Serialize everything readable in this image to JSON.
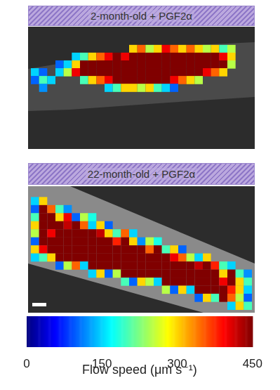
{
  "chart_data": {
    "type": "heatmap",
    "panels": [
      {
        "title": "2-month-old + PGF2α",
        "cells": [
          [
            null,
            null,
            null,
            null,
            null,
            null,
            null,
            null,
            null,
            null,
            null,
            null,
            null,
            null,
            null,
            null,
            null,
            null,
            null,
            null,
            null,
            null,
            null,
            null,
            null,
            null,
            null
          ],
          [
            null,
            null,
            null,
            null,
            null,
            null,
            null,
            null,
            null,
            null,
            null,
            null,
            null,
            null,
            null,
            null,
            null,
            null,
            null,
            null,
            null,
            null,
            null,
            null,
            null,
            null,
            null
          ],
          [
            null,
            null,
            null,
            null,
            null,
            null,
            null,
            null,
            null,
            null,
            null,
            null,
            300,
            350,
            250,
            300,
            400,
            350,
            300,
            350,
            300,
            250,
            300,
            200,
            250,
            null,
            null
          ],
          [
            null,
            null,
            null,
            null,
            null,
            150,
            200,
            300,
            350,
            400,
            450,
            400,
            450,
            450,
            450,
            450,
            450,
            450,
            450,
            450,
            450,
            450,
            450,
            400,
            300,
            null,
            null
          ],
          [
            null,
            null,
            null,
            100,
            150,
            300,
            450,
            450,
            450,
            450,
            450,
            450,
            450,
            450,
            450,
            450,
            450,
            450,
            450,
            450,
            450,
            450,
            450,
            450,
            250,
            null,
            null
          ],
          [
            150,
            100,
            null,
            150,
            250,
            400,
            450,
            450,
            450,
            450,
            450,
            450,
            450,
            450,
            450,
            450,
            450,
            450,
            450,
            450,
            450,
            400,
            350,
            300,
            null,
            null,
            null
          ],
          [
            100,
            200,
            150,
            null,
            null,
            null,
            200,
            300,
            350,
            400,
            450,
            450,
            450,
            450,
            450,
            450,
            450,
            400,
            350,
            300,
            250,
            null,
            null,
            null,
            null,
            null,
            null
          ],
          [
            null,
            120,
            null,
            null,
            null,
            null,
            null,
            null,
            null,
            150,
            200,
            300,
            300,
            250,
            300,
            200,
            150,
            100,
            null,
            null,
            null,
            null,
            null,
            null,
            null,
            null,
            null
          ],
          [
            null,
            null,
            null,
            null,
            null,
            null,
            null,
            null,
            null,
            null,
            null,
            null,
            null,
            null,
            null,
            null,
            null,
            null,
            null,
            null,
            null,
            null,
            null,
            null,
            null,
            null,
            null
          ],
          [
            null,
            null,
            null,
            null,
            null,
            null,
            null,
            null,
            null,
            null,
            null,
            null,
            null,
            null,
            null,
            null,
            null,
            null,
            null,
            null,
            null,
            null,
            null,
            null,
            null,
            null,
            null
          ],
          [
            null,
            null,
            null,
            null,
            null,
            null,
            null,
            null,
            null,
            null,
            null,
            null,
            null,
            null,
            null,
            null,
            null,
            null,
            null,
            null,
            null,
            null,
            null,
            null,
            null,
            null,
            null
          ],
          [
            null,
            null,
            null,
            null,
            null,
            null,
            null,
            null,
            null,
            null,
            null,
            null,
            null,
            null,
            null,
            null,
            null,
            null,
            null,
            null,
            null,
            null,
            null,
            null,
            null,
            null,
            null
          ],
          [
            null,
            null,
            null,
            null,
            null,
            null,
            null,
            null,
            null,
            null,
            null,
            null,
            null,
            null,
            null,
            null,
            null,
            null,
            null,
            null,
            null,
            null,
            null,
            null,
            null,
            null,
            null
          ],
          [
            null,
            null,
            null,
            null,
            null,
            null,
            null,
            null,
            null,
            null,
            null,
            null,
            null,
            null,
            null,
            null,
            null,
            null,
            null,
            null,
            null,
            null,
            null,
            null,
            null,
            null,
            null
          ],
          [
            null,
            null,
            null,
            null,
            null,
            null,
            null,
            null,
            null,
            null,
            null,
            null,
            null,
            null,
            null,
            null,
            null,
            null,
            null,
            null,
            null,
            null,
            null,
            null,
            null,
            null,
            null
          ]
        ]
      },
      {
        "title": "22-month-old + PGF2α",
        "cells": [
          [
            null,
            null,
            null,
            null,
            null,
            null,
            null,
            null,
            null,
            null,
            null,
            null,
            null,
            null,
            null,
            null,
            null,
            null,
            null,
            null,
            null,
            null,
            null,
            null,
            null,
            null,
            null
          ],
          [
            150,
            300,
            null,
            null,
            null,
            null,
            null,
            null,
            null,
            null,
            null,
            null,
            null,
            null,
            null,
            null,
            null,
            null,
            null,
            null,
            null,
            null,
            null,
            null,
            null,
            null,
            null
          ],
          [
            100,
            450,
            350,
            200,
            120,
            null,
            null,
            null,
            null,
            null,
            null,
            null,
            null,
            null,
            null,
            null,
            null,
            null,
            null,
            null,
            null,
            null,
            null,
            null,
            null,
            null,
            null
          ],
          [
            200,
            450,
            450,
            300,
            400,
            100,
            250,
            180,
            null,
            null,
            null,
            null,
            null,
            null,
            null,
            null,
            null,
            null,
            null,
            null,
            null,
            null,
            null,
            null,
            null,
            null,
            null
          ],
          [
            300,
            450,
            450,
            450,
            420,
            450,
            350,
            150,
            300,
            100,
            null,
            null,
            null,
            null,
            null,
            null,
            null,
            null,
            null,
            null,
            null,
            null,
            null,
            null,
            null,
            null,
            null
          ],
          [
            250,
            450,
            400,
            450,
            450,
            450,
            450,
            450,
            420,
            300,
            200,
            350,
            150,
            null,
            null,
            null,
            null,
            null,
            null,
            null,
            null,
            null,
            null,
            null,
            null,
            null,
            null
          ],
          [
            100,
            450,
            450,
            450,
            450,
            450,
            450,
            450,
            450,
            450,
            380,
            450,
            300,
            120,
            250,
            180,
            null,
            null,
            null,
            null,
            null,
            null,
            null,
            null,
            null,
            null,
            null
          ],
          [
            300,
            400,
            450,
            450,
            450,
            450,
            450,
            450,
            450,
            450,
            450,
            450,
            450,
            450,
            350,
            450,
            200,
            300,
            100,
            null,
            null,
            null,
            null,
            null,
            null,
            null,
            null
          ],
          [
            150,
            200,
            300,
            450,
            450,
            450,
            450,
            450,
            450,
            450,
            450,
            450,
            450,
            450,
            450,
            450,
            450,
            400,
            350,
            250,
            150,
            300,
            null,
            null,
            null,
            null,
            null
          ],
          [
            null,
            null,
            null,
            100,
            250,
            350,
            150,
            450,
            450,
            450,
            450,
            450,
            450,
            450,
            450,
            450,
            450,
            450,
            450,
            450,
            420,
            450,
            380,
            200,
            150,
            null,
            null
          ],
          [
            null,
            null,
            null,
            null,
            null,
            null,
            null,
            150,
            300,
            100,
            250,
            450,
            450,
            450,
            450,
            450,
            450,
            450,
            450,
            450,
            450,
            450,
            450,
            300,
            450,
            200,
            120
          ],
          [
            null,
            null,
            null,
            null,
            null,
            null,
            null,
            null,
            null,
            null,
            null,
            200,
            100,
            300,
            250,
            150,
            450,
            450,
            450,
            450,
            450,
            450,
            450,
            400,
            450,
            300,
            200
          ],
          [
            null,
            null,
            null,
            null,
            null,
            null,
            null,
            null,
            null,
            null,
            null,
            null,
            null,
            null,
            null,
            null,
            250,
            100,
            300,
            150,
            450,
            450,
            450,
            450,
            380,
            300,
            150
          ],
          [
            null,
            null,
            null,
            null,
            null,
            null,
            null,
            null,
            null,
            null,
            null,
            null,
            null,
            null,
            null,
            null,
            null,
            null,
            null,
            null,
            100,
            300,
            200,
            450,
            350,
            250,
            100
          ],
          [
            null,
            null,
            null,
            null,
            null,
            null,
            null,
            null,
            null,
            null,
            null,
            null,
            null,
            null,
            null,
            null,
            null,
            null,
            null,
            null,
            null,
            null,
            null,
            null,
            150,
            300,
            200
          ]
        ]
      }
    ],
    "colorbar_label": "Flow speed (μm s⁻¹)",
    "colorbar_range": [
      0,
      450
    ],
    "colorbar_ticks": [
      0,
      150,
      300,
      450
    ]
  }
}
